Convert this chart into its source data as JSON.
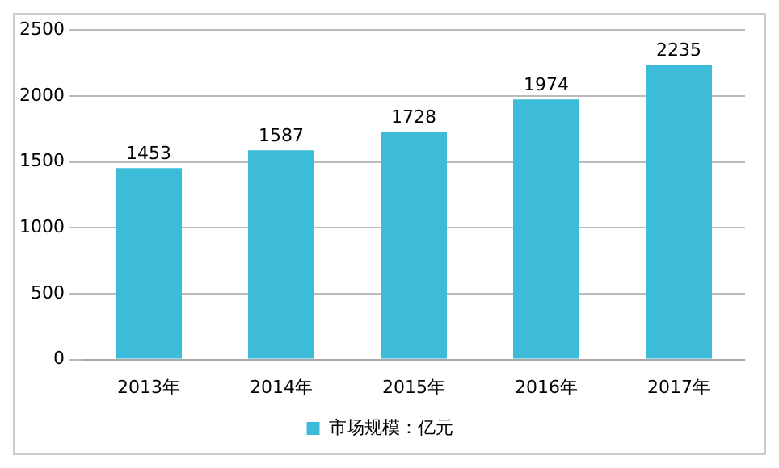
{
  "chart_data": {
    "type": "bar",
    "categories": [
      "2013年",
      "2014年",
      "2015年",
      "2016年",
      "2017年"
    ],
    "series": [
      {
        "name": "市场规模：亿元",
        "color": "#3cbcd8",
        "values": [
          1453,
          1587,
          1728,
          1974,
          2235
        ]
      }
    ],
    "ylim": [
      0,
      2500
    ],
    "yticks": [
      0,
      500,
      1000,
      1500,
      2000,
      2500
    ],
    "grid": "y",
    "legend": "bottom",
    "data_labels": true
  }
}
